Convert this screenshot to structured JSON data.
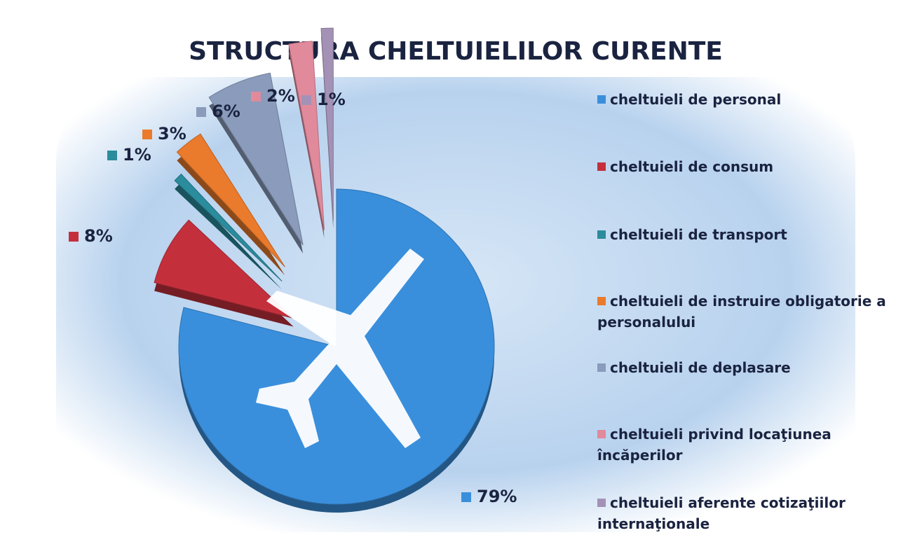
{
  "chart_data": {
    "type": "pie",
    "title": "STRUCTURA CHELTUIELILOR CURENTE",
    "categories": [
      "cheltuieli de personal",
      "cheltuieli de consum",
      "cheltuieli de transport",
      "cheltuieli de instruire obligatorie a personalului",
      "cheltuieli de deplasare",
      "cheltuieli privind locaţiunea încăperilor",
      "cheltuieli aferente cotizaţiilor internaţionale"
    ],
    "values": [
      79,
      8,
      1,
      3,
      6,
      2,
      1
    ],
    "value_labels": [
      "79%",
      "8%",
      "1%",
      "3%",
      "6%",
      "2%",
      "1%"
    ],
    "colors": [
      "#3a8fdc",
      "#c3303c",
      "#2a8c9c",
      "#ea7a2c",
      "#8a9bbb",
      "#e08a9c",
      "#a492b6"
    ],
    "legend": "right"
  }
}
